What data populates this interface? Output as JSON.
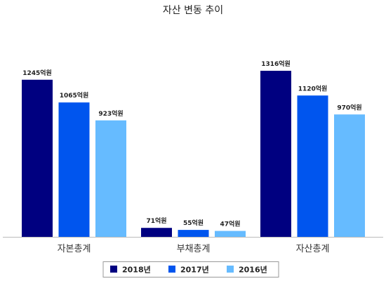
{
  "chart_data": {
    "type": "bar",
    "title": "자산 변동 추이",
    "categories": [
      "자본총계",
      "부채총계",
      "자산총계"
    ],
    "unit": "억원",
    "series": [
      {
        "name": "2018년",
        "color": "#000080",
        "values": [
          1245,
          71,
          1316
        ]
      },
      {
        "name": "2017년",
        "color": "#0055ee",
        "values": [
          1065,
          55,
          1120
        ]
      },
      {
        "name": "2016년",
        "color": "#66bbff",
        "values": [
          923,
          47,
          970
        ]
      }
    ],
    "data_labels": [
      [
        "1245억원",
        "71억원",
        "1316억원"
      ],
      [
        "1065억원",
        "55억원",
        "1120억원"
      ],
      [
        "923억원",
        "47억원",
        "970억원"
      ]
    ],
    "ylim": [
      0,
      1400
    ],
    "grid": false,
    "legend_position": "bottom"
  }
}
